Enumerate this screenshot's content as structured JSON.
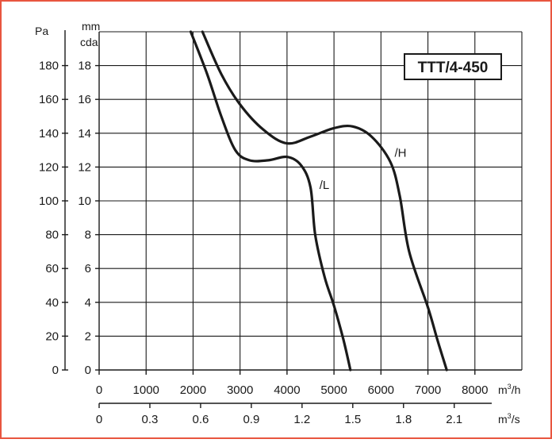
{
  "chart_data": {
    "type": "line",
    "title": "TTT/4-450",
    "frame_color": "#e8553f",
    "x": {
      "unit": "m³/h",
      "unit_base": "m",
      "unit_sup": "3",
      "unit_tail": "/h",
      "range": [
        0,
        9000
      ],
      "ticks": [
        0,
        1000,
        2000,
        3000,
        4000,
        5000,
        6000,
        7000,
        8000
      ],
      "tick_labels": [
        "0",
        "1000",
        "2000",
        "3000",
        "4000",
        "5000",
        "6000",
        "7000",
        "8000"
      ]
    },
    "x2": {
      "unit": "m³/s",
      "unit_base": "m",
      "unit_sup": "3",
      "unit_tail": "/s",
      "range": [
        0,
        2.5
      ],
      "ticks": [
        0,
        0.3,
        0.6,
        0.9,
        1.2,
        1.5,
        1.8,
        2.1
      ],
      "tick_labels": [
        "0",
        "0.3",
        "0.6",
        "0.9",
        "1.2",
        "1.5",
        "1.8",
        "2.1"
      ]
    },
    "y": {
      "unit": "Pa",
      "range": [
        0,
        200
      ],
      "ticks": [
        0,
        20,
        40,
        60,
        80,
        100,
        120,
        140,
        160,
        180
      ],
      "tick_labels": [
        "0",
        "20",
        "40",
        "60",
        "80",
        "100",
        "120",
        "140",
        "160",
        "180"
      ]
    },
    "y2": {
      "unit_line1": "mm",
      "unit_line2": "cda",
      "range": [
        0,
        20
      ],
      "ticks": [
        0,
        2,
        4,
        6,
        8,
        10,
        12,
        14,
        16,
        18
      ],
      "tick_labels": [
        "0",
        "2",
        "4",
        "6",
        "8",
        "10",
        "12",
        "14",
        "16",
        "18"
      ]
    },
    "grid": true,
    "series": [
      {
        "name": "/H",
        "points": [
          [
            2200,
            200
          ],
          [
            2600,
            175
          ],
          [
            3000,
            157
          ],
          [
            3500,
            142
          ],
          [
            4000,
            134
          ],
          [
            4500,
            138
          ],
          [
            5000,
            143
          ],
          [
            5400,
            144
          ],
          [
            5800,
            138
          ],
          [
            6200,
            123
          ],
          [
            6400,
            103
          ],
          [
            6600,
            70
          ],
          [
            7000,
            37
          ],
          [
            7200,
            18
          ],
          [
            7400,
            0
          ]
        ]
      },
      {
        "name": "/L",
        "points": [
          [
            1950,
            200
          ],
          [
            2300,
            175
          ],
          [
            2600,
            150
          ],
          [
            2900,
            130
          ],
          [
            3200,
            124
          ],
          [
            3600,
            124
          ],
          [
            4000,
            126
          ],
          [
            4300,
            121
          ],
          [
            4500,
            108
          ],
          [
            4600,
            80
          ],
          [
            4800,
            55
          ],
          [
            5000,
            38
          ],
          [
            5200,
            18
          ],
          [
            5350,
            0
          ]
        ]
      }
    ]
  }
}
